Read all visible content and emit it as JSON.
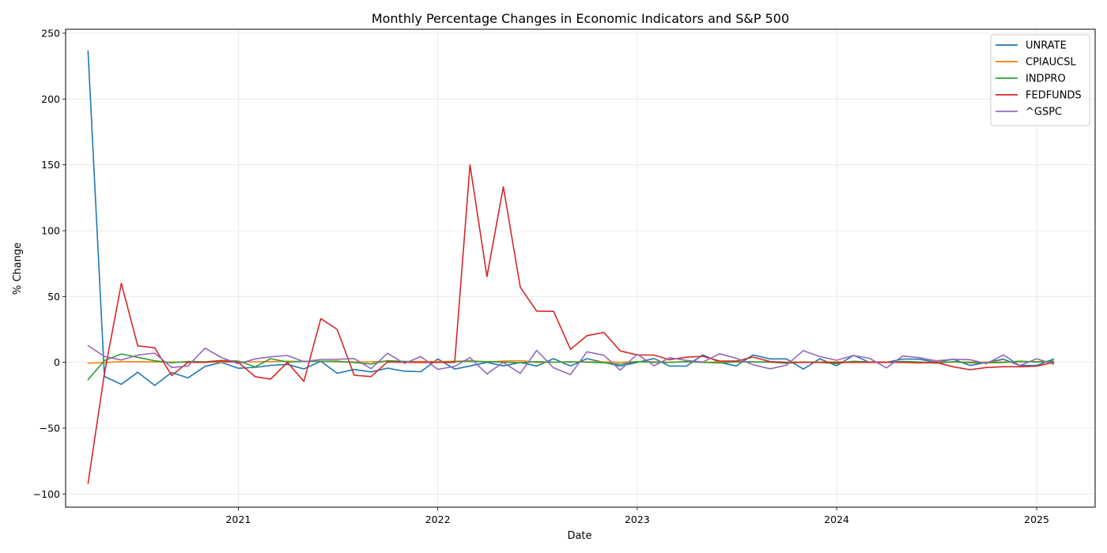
{
  "chart_data": {
    "type": "line",
    "title": "Monthly Percentage Changes in Economic Indicators and S&P 500",
    "xlabel": "Date",
    "ylabel": "% Change",
    "ylim": [
      -110,
      253
    ],
    "xlim": [
      "2020-02-20",
      "2025-04-18"
    ],
    "yticks": [
      -100,
      -50,
      0,
      50,
      100,
      150,
      200,
      250
    ],
    "ytick_labels": [
      "−100",
      "−50",
      "0",
      "50",
      "100",
      "150",
      "200",
      "250"
    ],
    "xticks": [
      "2021-01-01",
      "2022-01-01",
      "2023-01-01",
      "2024-01-01",
      "2025-01-01"
    ],
    "xtick_labels": [
      "2021",
      "2022",
      "2023",
      "2024",
      "2025"
    ],
    "grid": true,
    "legend_position": "top-right",
    "x": [
      "2020-04-01",
      "2020-05-01",
      "2020-06-01",
      "2020-07-01",
      "2020-08-01",
      "2020-09-01",
      "2020-10-01",
      "2020-11-01",
      "2020-12-01",
      "2021-01-01",
      "2021-02-01",
      "2021-03-01",
      "2021-04-01",
      "2021-05-01",
      "2021-06-01",
      "2021-07-01",
      "2021-08-01",
      "2021-09-01",
      "2021-10-01",
      "2021-11-01",
      "2021-12-01",
      "2022-01-01",
      "2022-02-01",
      "2022-03-01",
      "2022-04-01",
      "2022-05-01",
      "2022-06-01",
      "2022-07-01",
      "2022-08-01",
      "2022-09-01",
      "2022-10-01",
      "2022-11-01",
      "2022-12-01",
      "2023-01-01",
      "2023-02-01",
      "2023-03-01",
      "2023-04-01",
      "2023-05-01",
      "2023-06-01",
      "2023-07-01",
      "2023-08-01",
      "2023-09-01",
      "2023-10-01",
      "2023-11-01",
      "2023-12-01",
      "2024-01-01",
      "2024-02-01",
      "2024-03-01",
      "2024-04-01",
      "2024-05-01",
      "2024-06-01",
      "2024-07-01",
      "2024-08-01",
      "2024-09-01",
      "2024-10-01",
      "2024-11-01",
      "2024-12-01",
      "2025-01-01",
      "2025-02-01"
    ],
    "series": [
      {
        "name": "UNRATE",
        "color": "#1f77b4",
        "values": [
          236.5,
          -10.7,
          -16.7,
          -7.5,
          -17.5,
          -7.7,
          -11.8,
          -3.1,
          0,
          -4.5,
          -3.8,
          -2.3,
          -1.6,
          -5.0,
          0.8,
          -8.3,
          -5.4,
          -7.3,
          -4.4,
          -6.7,
          -7.1,
          2.6,
          -5.1,
          -2.8,
          0,
          -2.7,
          0,
          -2.8,
          2.8,
          -2.8,
          2.8,
          0,
          -2.8,
          0,
          2.9,
          -2.8,
          -2.9,
          5.7,
          0,
          -2.7,
          5.6,
          2.6,
          2.6,
          -5.1,
          2.7,
          -2.6,
          5.4,
          0,
          0,
          2.5,
          2.4,
          0,
          2.4,
          -2.4,
          0,
          2.4,
          -2.4,
          -2.4,
          2.5
        ]
      },
      {
        "name": "CPIAUCSL",
        "color": "#ff7f0e",
        "values": [
          -0.7,
          -0.1,
          0.5,
          0.5,
          0.3,
          0.2,
          0.0,
          0.2,
          0.3,
          0.3,
          0.4,
          0.6,
          0.8,
          0.6,
          0.9,
          0.4,
          0.3,
          0.4,
          0.9,
          0.7,
          0.6,
          0.6,
          0.8,
          1.3,
          0.3,
          1.0,
          1.3,
          0.0,
          0.1,
          0.4,
          0.4,
          0.3,
          0.1,
          0.5,
          0.4,
          0.1,
          0.4,
          0.1,
          0.2,
          0.2,
          0.4,
          0.3,
          0.1,
          0.2,
          0.2,
          0.3,
          0.4,
          0.4,
          0.3,
          0.0,
          -0.1,
          0.2,
          0.2,
          0.2,
          0.2,
          0.3,
          0.4,
          0.5,
          0.2
        ]
      },
      {
        "name": "INDPRO",
        "color": "#2ca02c",
        "values": [
          -13.2,
          1.4,
          6.4,
          3.8,
          1.2,
          -0.3,
          0.7,
          0.4,
          1.4,
          1.0,
          -3.4,
          2.8,
          0.3,
          0.8,
          0.8,
          0.9,
          -0.2,
          -1.3,
          1.3,
          0.7,
          -0.1,
          -0.1,
          0.5,
          0.8,
          0.5,
          0.2,
          -0.2,
          0.5,
          0.1,
          0.4,
          0.1,
          -0.3,
          -1.4,
          0.6,
          0.0,
          0.0,
          0.5,
          0.0,
          -0.5,
          0.6,
          0.3,
          0.2,
          -0.7,
          0.2,
          0.0,
          -0.9,
          0.8,
          0.2,
          0.0,
          0.7,
          0.2,
          -0.6,
          0.5,
          -0.3,
          -0.4,
          -0.1,
          0.9,
          0.3,
          0.9
        ]
      },
      {
        "name": "FEDFUNDS",
        "color": "#d62728",
        "values": [
          -92.0,
          -8.5,
          60.0,
          12.5,
          11.1,
          -10.0,
          0,
          0,
          1.1,
          0,
          -10.9,
          -12.8,
          0,
          -14.5,
          33.2,
          25.0,
          -9.8,
          -10.8,
          0.3,
          0.0,
          0.0,
          0.0,
          0.0,
          150.0,
          65.1,
          133.3,
          57.1,
          38.9,
          38.7,
          9.9,
          20.3,
          22.7,
          8.7,
          5.6,
          5.5,
          2.0,
          3.9,
          4.6,
          1.0,
          1.0,
          4.0,
          0.6,
          0.0,
          0.0,
          0.0,
          0.0,
          0.0,
          0.0,
          0.0,
          0.0,
          -0.4,
          0.0,
          -3.4,
          -5.6,
          -3.9,
          -3.3,
          -3.3,
          -2.9,
          0.0
        ]
      },
      {
        "name": "^GSPC",
        "color": "#9467bd",
        "values": [
          12.7,
          4.5,
          1.8,
          5.5,
          7.0,
          -3.9,
          -2.8,
          10.8,
          3.7,
          -1.1,
          2.6,
          4.2,
          5.2,
          0.5,
          2.2,
          2.3,
          2.9,
          -4.8,
          6.9,
          -0.8,
          4.4,
          -5.3,
          -3.1,
          3.6,
          -8.8,
          0.0,
          -8.4,
          9.1,
          -4.2,
          -9.3,
          8.0,
          5.4,
          -5.9,
          6.2,
          -2.6,
          3.5,
          1.5,
          0.2,
          6.5,
          3.1,
          -1.8,
          -4.9,
          -2.2,
          8.9,
          4.4,
          1.6,
          5.2,
          3.1,
          -4.2,
          4.8,
          3.5,
          1.1,
          2.3,
          2.0,
          -1.0,
          5.7,
          -2.5,
          2.7,
          -1.4
        ]
      }
    ]
  }
}
